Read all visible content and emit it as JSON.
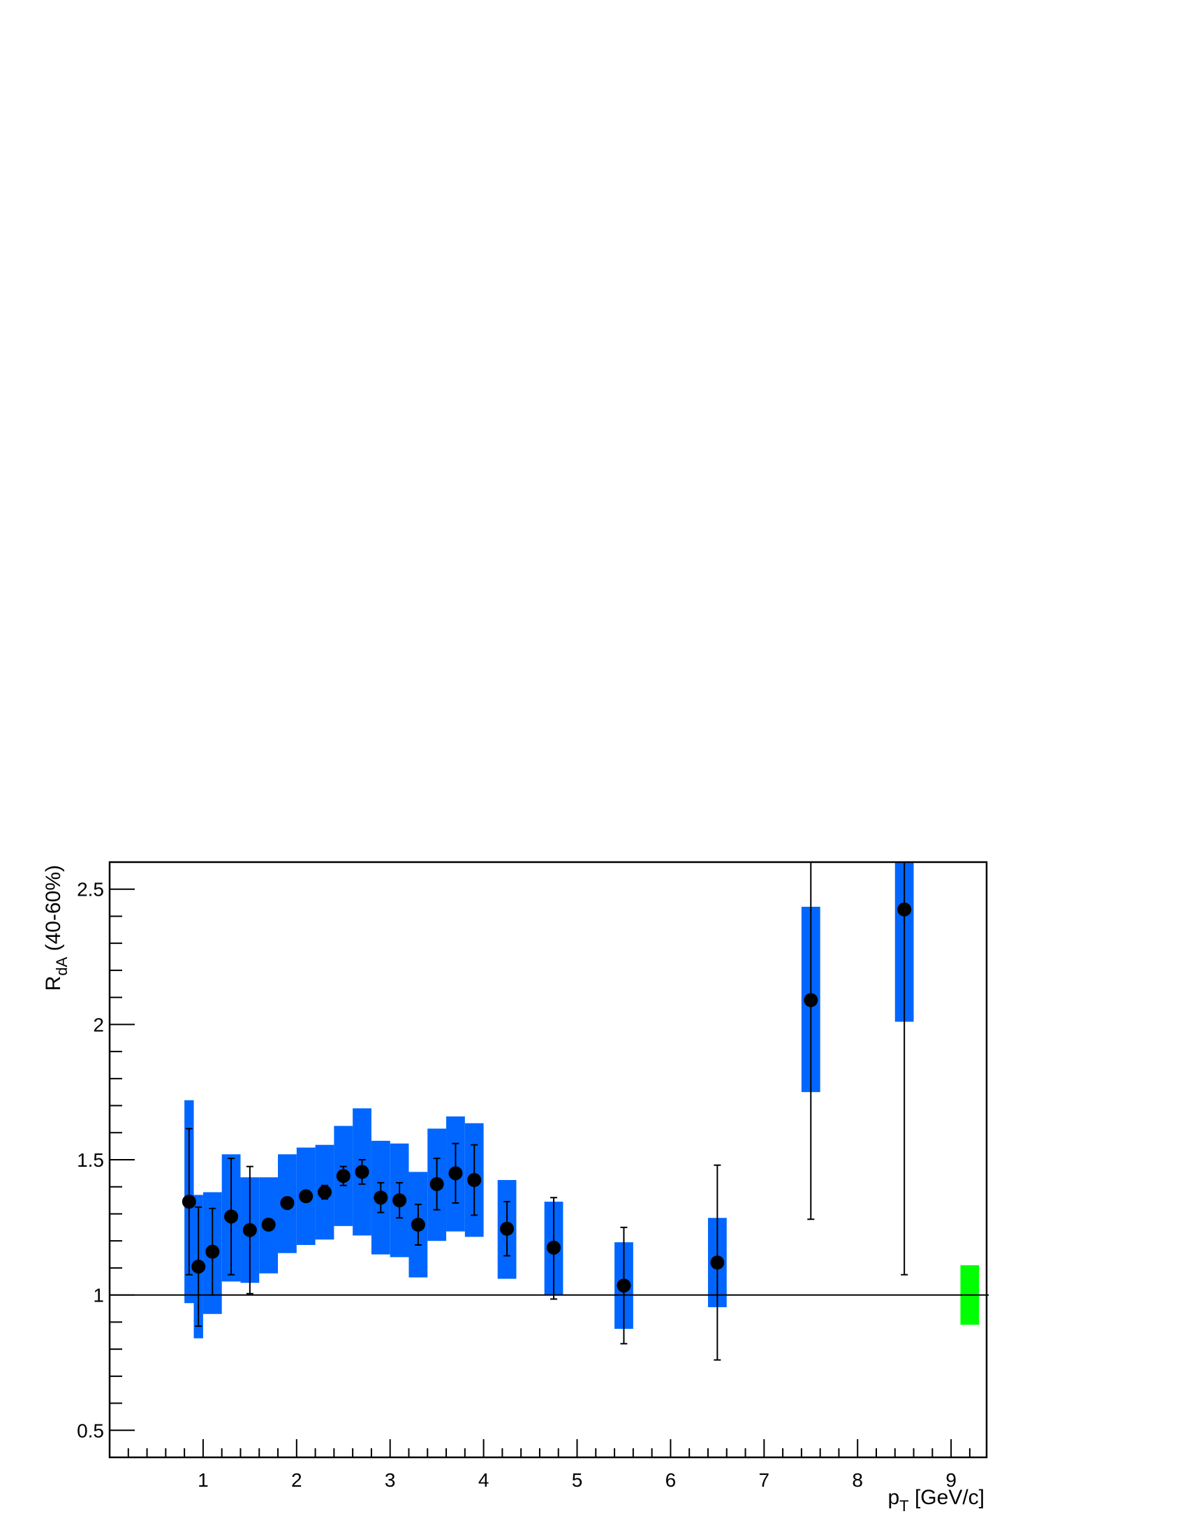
{
  "chart_data": {
    "type": "scatter",
    "title": "",
    "xlabel": "p",
    "xlabel_sub": "T",
    "xlabel_unit": " [GeV/c]",
    "ylabel": "R",
    "ylabel_sub": "dA",
    "ylabel_rest": " (40-60%)",
    "xlim": [
      0,
      9.38
    ],
    "ylim": [
      0.4,
      2.6
    ],
    "x_ticks": [
      "1",
      "2",
      "3",
      "4",
      "5",
      "6",
      "7",
      "8",
      "9"
    ],
    "y_ticks": [
      "0.5",
      "1",
      "1.5",
      "2",
      "2.5"
    ],
    "reference_line": 1.0,
    "grid": false,
    "colors": {
      "sys_box": "#0066ff",
      "norm_box": "#00ff00",
      "marker": "#000000"
    },
    "normalization_uncertainty": {
      "x": 9.2,
      "ylow": 0.89,
      "yhigh": 1.11
    },
    "series": [
      {
        "points": [
          {
            "x": 0.85,
            "y": 1.345,
            "stat": [
              1.075,
              1.615
            ],
            "sys": [
              0.97,
              1.72
            ],
            "w": 0.1
          },
          {
            "x": 0.95,
            "y": 1.105,
            "stat": [
              0.885,
              1.325
            ],
            "sys": [
              0.84,
              1.37
            ],
            "w": 0.1
          },
          {
            "x": 1.1,
            "y": 1.16,
            "stat": [
              1.0,
              1.32
            ],
            "sys": [
              0.93,
              1.38
            ],
            "w": 0.2
          },
          {
            "x": 1.3,
            "y": 1.29,
            "stat": [
              1.075,
              1.505
            ],
            "sys": [
              1.05,
              1.52
            ],
            "w": 0.2
          },
          {
            "x": 1.5,
            "y": 1.24,
            "stat": [
              1.005,
              1.475
            ],
            "sys": [
              1.045,
              1.435
            ],
            "w": 0.2
          },
          {
            "x": 1.7,
            "y": 1.26,
            "stat": [
              1.245,
              1.275
            ],
            "sys": [
              1.08,
              1.435
            ],
            "w": 0.2
          },
          {
            "x": 1.9,
            "y": 1.34,
            "stat": [
              1.325,
              1.355
            ],
            "sys": [
              1.155,
              1.52
            ],
            "w": 0.2
          },
          {
            "x": 2.1,
            "y": 1.365,
            "stat": [
              1.35,
              1.38
            ],
            "sys": [
              1.185,
              1.545
            ],
            "w": 0.2
          },
          {
            "x": 2.3,
            "y": 1.38,
            "stat": [
              1.355,
              1.405
            ],
            "sys": [
              1.205,
              1.555
            ],
            "w": 0.2
          },
          {
            "x": 2.5,
            "y": 1.44,
            "stat": [
              1.405,
              1.475
            ],
            "sys": [
              1.255,
              1.625
            ],
            "w": 0.2
          },
          {
            "x": 2.7,
            "y": 1.455,
            "stat": [
              1.41,
              1.5
            ],
            "sys": [
              1.22,
              1.69
            ],
            "w": 0.2
          },
          {
            "x": 2.9,
            "y": 1.36,
            "stat": [
              1.305,
              1.415
            ],
            "sys": [
              1.15,
              1.57
            ],
            "w": 0.2
          },
          {
            "x": 3.1,
            "y": 1.35,
            "stat": [
              1.285,
              1.415
            ],
            "sys": [
              1.14,
              1.56
            ],
            "w": 0.2
          },
          {
            "x": 3.3,
            "y": 1.26,
            "stat": [
              1.185,
              1.335
            ],
            "sys": [
              1.065,
              1.455
            ],
            "w": 0.2
          },
          {
            "x": 3.5,
            "y": 1.41,
            "stat": [
              1.315,
              1.505
            ],
            "sys": [
              1.2,
              1.615
            ],
            "w": 0.2
          },
          {
            "x": 3.7,
            "y": 1.45,
            "stat": [
              1.34,
              1.56
            ],
            "sys": [
              1.235,
              1.66
            ],
            "w": 0.2
          },
          {
            "x": 3.9,
            "y": 1.425,
            "stat": [
              1.295,
              1.555
            ],
            "sys": [
              1.215,
              1.635
            ],
            "w": 0.2
          },
          {
            "x": 4.25,
            "y": 1.245,
            "stat": [
              1.145,
              1.345
            ],
            "sys": [
              1.06,
              1.425
            ],
            "w": 0.2
          },
          {
            "x": 4.75,
            "y": 1.175,
            "stat": [
              0.985,
              1.36
            ],
            "sys": [
              1.0,
              1.345
            ],
            "w": 0.2
          },
          {
            "x": 5.5,
            "y": 1.035,
            "stat": [
              0.82,
              1.25
            ],
            "sys": [
              0.875,
              1.195
            ],
            "w": 0.2
          },
          {
            "x": 6.5,
            "y": 1.12,
            "stat": [
              0.76,
              1.48
            ],
            "sys": [
              0.955,
              1.285
            ],
            "w": 0.2
          },
          {
            "x": 7.5,
            "y": 2.09,
            "stat": [
              1.28,
              2.6
            ],
            "sys": [
              1.75,
              2.435
            ],
            "w": 0.2
          },
          {
            "x": 8.5,
            "y": 2.425,
            "stat": [
              1.075,
              2.6
            ],
            "sys": [
              2.01,
              2.6
            ],
            "w": 0.2
          }
        ]
      }
    ]
  }
}
